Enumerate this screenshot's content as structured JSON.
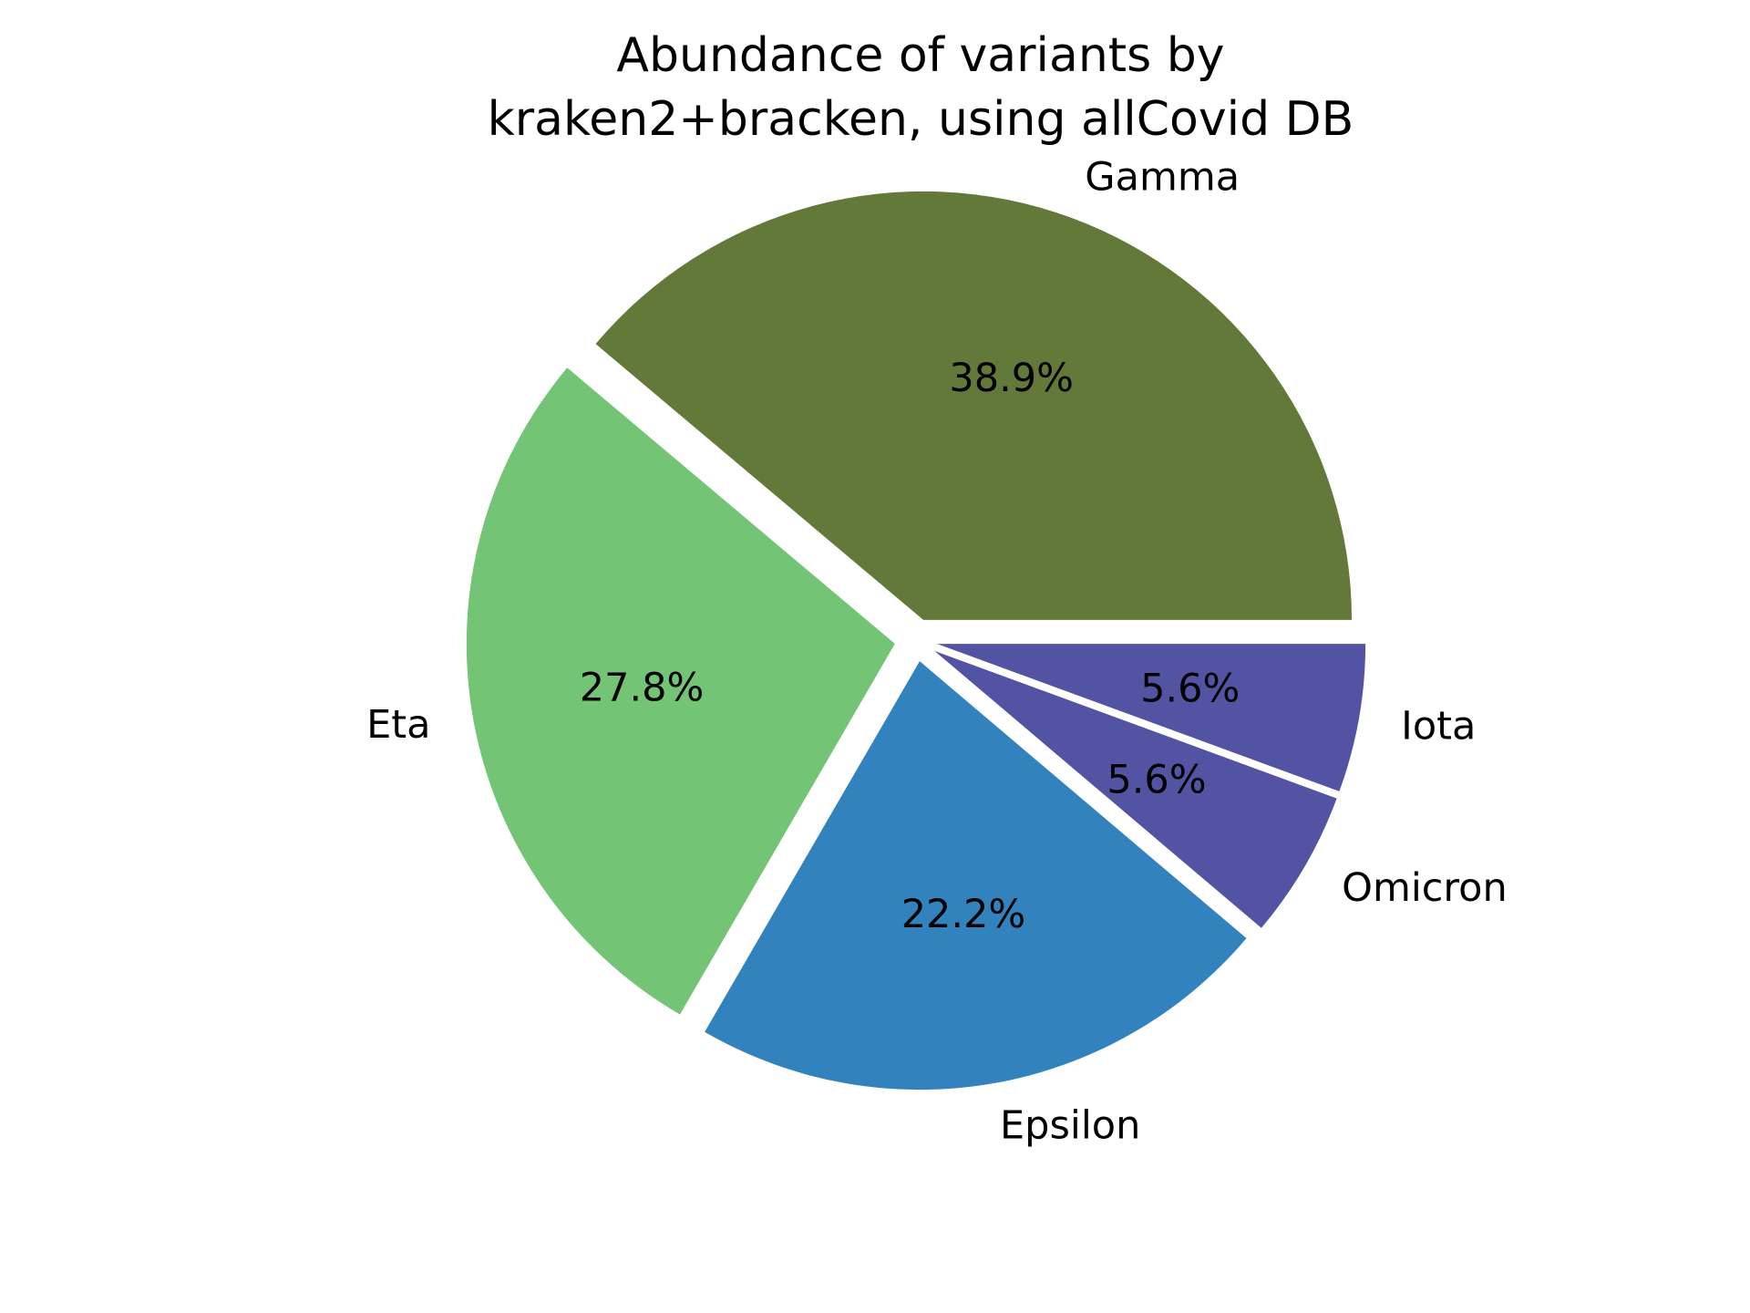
{
  "chart_data": {
    "type": "pie",
    "title": [
      "Abundance of variants by",
      "kraken2+bracken, using allCovid DB"
    ],
    "slices": [
      {
        "label": "Gamma",
        "value": 38.9,
        "pct_label": "38.9%",
        "color": "#637939",
        "exploded": true
      },
      {
        "label": "Eta",
        "value": 27.8,
        "pct_label": "27.8%",
        "color": "#74c476",
        "exploded": true
      },
      {
        "label": "Epsilon",
        "value": 22.2,
        "pct_label": "22.2%",
        "color": "#3182bd",
        "exploded": true
      },
      {
        "label": "Omicron",
        "value": 5.6,
        "pct_label": "5.6%",
        "color": "#5254a3",
        "exploded": true
      },
      {
        "label": "Iota",
        "value": 5.6,
        "pct_label": "5.6%",
        "color": "#5254a3",
        "exploded": true
      }
    ],
    "start_angle": "0 degrees (3 o'clock)",
    "direction": "counterclockwise",
    "legend": "none"
  }
}
